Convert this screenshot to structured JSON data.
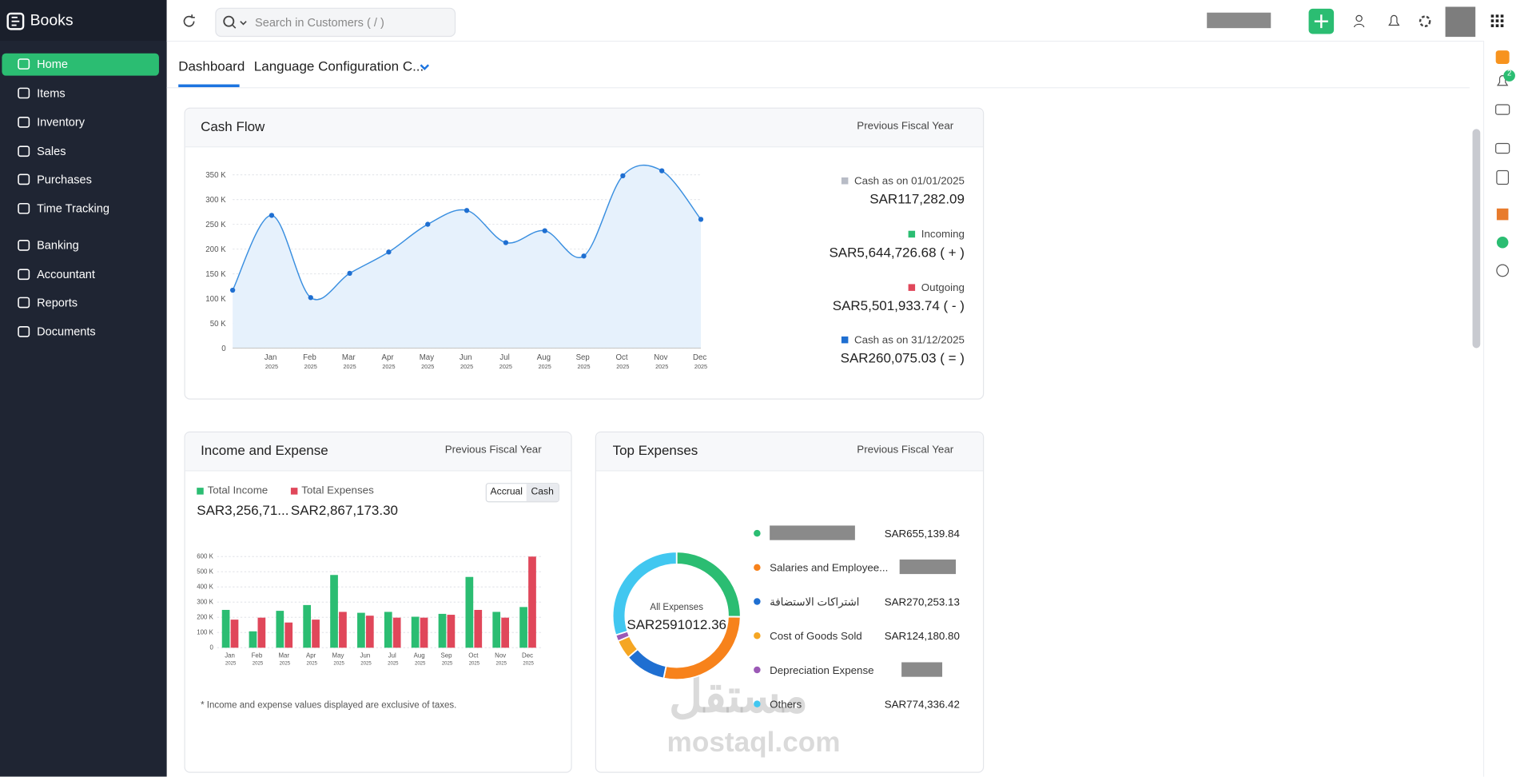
{
  "app": {
    "name": "Books",
    "search_placeholder": "Search in Customers ( / )",
    "notification_badge": "2"
  },
  "sidebar": [
    "Home",
    "Items",
    "Inventory",
    "Sales",
    "Purchases",
    "Time Tracking",
    "Banking",
    "Accountant",
    "Reports",
    "Documents"
  ],
  "tabs": [
    "Dashboard",
    "Language Configuration C..."
  ],
  "cash_flow": {
    "title": "Cash Flow",
    "period": "Previous Fiscal Year",
    "summary": [
      {
        "label": "Cash as on 01/01/2025",
        "value": "SAR117,282.09",
        "color": "#b8bcc6"
      },
      {
        "label": "Incoming",
        "value": "SAR5,644,726.68 ( + )",
        "color": "#2bbd72"
      },
      {
        "label": "Outgoing",
        "value": "SAR5,501,933.74 ( - )",
        "color": "#e0475a"
      },
      {
        "label": "Cash as on 31/12/2025",
        "value": "SAR260,075.03 ( = )",
        "color": "#1f6fd1"
      }
    ],
    "chart_data": {
      "type": "line",
      "color": "#3a8fe0",
      "area_color": "#e6f1fc",
      "categories": [
        null,
        "Jan 2025",
        "Feb 2025",
        "Mar 2025",
        "Apr 2025",
        "May 2025",
        "Jun 2025",
        "Jul 2025",
        "Aug 2025",
        "Sep 2025",
        "Oct 2025",
        "Nov 2025",
        "Dec 2025"
      ],
      "values": [
        117000,
        268000,
        102000,
        151000,
        194000,
        250000,
        278000,
        213000,
        237000,
        186000,
        348000,
        358000,
        260000
      ],
      "ylim": [
        0,
        370000
      ],
      "yticks": [
        0,
        {
          "value": 50000,
          "label": "50 K"
        },
        {
          "value": 100000,
          "label": "100 K"
        },
        {
          "value": 150000,
          "label": "150 K"
        },
        {
          "value": 200000,
          "label": "200 K"
        },
        {
          "value": 250000,
          "label": "250 K"
        },
        {
          "value": 300000,
          "label": "300 K"
        },
        {
          "value": 350000,
          "label": "350 K"
        }
      ],
      "grid": true
    }
  },
  "income_expense": {
    "title": "Income and Expense",
    "period": "Previous Fiscal Year",
    "totals": [
      {
        "label": "Total Income",
        "value": "SAR3,256,71..."
      },
      {
        "label": "Total Expenses",
        "value": "SAR2,867,173.30"
      }
    ],
    "basis_options": [
      "Accrual",
      "Cash"
    ],
    "note": "* Income and expense values displayed are exclusive of taxes.",
    "chart_data": {
      "type": "bar",
      "categories": [
        "Jan 2025",
        "Feb 2025",
        "Mar 2025",
        "Apr 2025",
        "May 2025",
        "Jun 2025",
        "Jul 2025",
        "Aug 2025",
        "Sep 2025",
        "Oct 2025",
        "Nov 2025",
        "Dec 2025"
      ],
      "series": [
        {
          "name": "Total Income",
          "color": "#2bbd72",
          "values": [
            249000,
            108000,
            243000,
            281000,
            479000,
            230000,
            236000,
            204000,
            223000,
            466000,
            236000,
            268000
          ]
        },
        {
          "name": "Total Expenses",
          "color": "#e0475a",
          "values": [
            185000,
            198000,
            166000,
            185000,
            236000,
            211000,
            198000,
            198000,
            217000,
            249000,
            198000,
            600000
          ]
        }
      ],
      "ylim": [
        0,
        600000
      ],
      "yticks": [
        0,
        {
          "value": 100000,
          "label": "100 K"
        },
        {
          "value": 200000,
          "label": "200 K"
        },
        {
          "value": 300000,
          "label": "300 K"
        },
        {
          "value": 400000,
          "label": "400 K"
        },
        {
          "value": 500000,
          "label": "500 K"
        },
        {
          "value": 600000,
          "label": "600 K"
        }
      ],
      "grid": true
    }
  },
  "top_expenses": {
    "title": "Top Expenses",
    "period": "Previous Fiscal Year",
    "chart_data": {
      "type": "donut",
      "center_label": "All Expenses",
      "center_value": "SAR2591012.36",
      "categories": [
        null,
        "Salaries and Employee...",
        "اشتراكات الاستضافة",
        "Cost of Goods Sold",
        "Depreciation Expense",
        "Others"
      ],
      "values": [
        655139.84,
        725097.0,
        270253.13,
        124180.8,
        42005.17,
        774336.42
      ],
      "value_labels": [
        "SAR655,139.84",
        null,
        "SAR270,253.13",
        "SAR124,180.80",
        null,
        "SAR774,336.42"
      ],
      "colors": [
        "#2bbd72",
        "#f7821b",
        "#1f6fd1",
        "#f5a623",
        "#9b59b6",
        "#41c7f0"
      ]
    }
  },
  "watermark": [
    "مستقل",
    "mostaql.com"
  ]
}
